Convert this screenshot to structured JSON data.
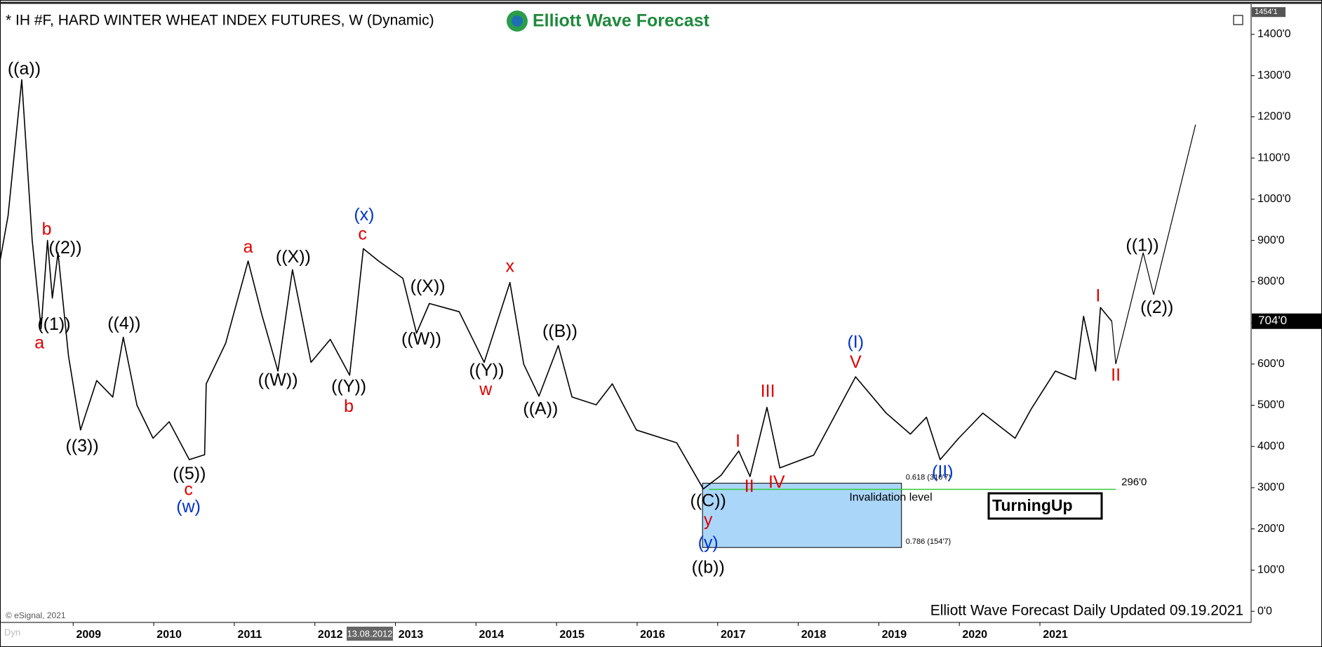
{
  "chart_data": {
    "type": "line",
    "title": "* IH #F, HARD WINTER WHEAT INDEX FUTURES, W (Dynamic)",
    "logo_text": "Elliott Wave Forecast",
    "footer": "Elliott Wave Forecast Daily Updated 09.19.2021",
    "copyright": "© eSignal, 2021",
    "corner_label": "Dyn",
    "cursor_label": "13.08.2012",
    "badge": "TurningUp",
    "color": "#000000",
    "x": [
      2007.9,
      2008.0,
      2008.17,
      2008.3,
      2008.41,
      2008.49,
      2008.55,
      2008.62,
      2008.75,
      2008.9,
      2009.1,
      2009.3,
      2009.43,
      2009.6,
      2009.8,
      2010.0,
      2010.25,
      2010.44,
      2010.46,
      2010.7,
      2010.98,
      2011.15,
      2011.35,
      2011.53,
      2011.76,
      2012.0,
      2012.24,
      2012.41,
      2012.6,
      2012.9,
      2013.07,
      2013.23,
      2013.6,
      2013.91,
      2014.23,
      2014.4,
      2014.59,
      2014.83,
      2015.0,
      2015.3,
      2015.5,
      2015.8,
      2016.3,
      2016.63,
      2016.85,
      2017.07,
      2017.21,
      2017.42,
      2017.58,
      2018.0,
      2018.52,
      2018.9,
      2019.2,
      2019.4,
      2019.57,
      2019.8,
      2020.1,
      2020.5,
      2020.7,
      2021.0,
      2021.25,
      2021.35,
      2021.5,
      2021.56,
      2021.7
    ],
    "values": [
      850,
      960,
      1290,
      900,
      686,
      900,
      760,
      870,
      620,
      440,
      560,
      520,
      665,
      500,
      420,
      460,
      368,
      380,
      552,
      650,
      850,
      720,
      583,
      829,
      604,
      660,
      573,
      880,
      850,
      808,
      675,
      747,
      727,
      604,
      798,
      600,
      522,
      645,
      520,
      501,
      552,
      440,
      409,
      297,
      330,
      389,
      327,
      495,
      348,
      379,
      569,
      481,
      430,
      471,
      368,
      420,
      481,
      420,
      491,
      583,
      563,
      716,
      583,
      737,
      704
    ],
    "projection": {
      "x": [
        2021.7,
        2021.75,
        2022.09,
        2022.22,
        2022.74
      ],
      "values": [
        704,
        600,
        870,
        768,
        1181
      ]
    },
    "xlim": [
      2007.9,
      2023.43
    ],
    "ylim": [
      -27,
      1463
    ],
    "xticks": [
      2009,
      2010,
      2011,
      2012,
      2013,
      2014,
      2015,
      2016,
      2017,
      2018,
      2019,
      2020,
      2021
    ],
    "yticks": [
      {
        "value": 0,
        "label": "0'0"
      },
      {
        "value": 100,
        "label": "100'0"
      },
      {
        "value": 200,
        "label": "200'0"
      },
      {
        "value": 300,
        "label": "300'0"
      },
      {
        "value": 400,
        "label": "400'0"
      },
      {
        "value": 500,
        "label": "500'0"
      },
      {
        "value": 600,
        "label": "600'0"
      },
      {
        "value": 700,
        "label": "700'0"
      },
      {
        "value": 800,
        "label": "800'0"
      },
      {
        "value": 900,
        "label": "900'0"
      },
      {
        "value": 1000,
        "label": "1000'0"
      },
      {
        "value": 1100,
        "label": "1100'0"
      },
      {
        "value": 1200,
        "label": "1200'0"
      },
      {
        "value": 1300,
        "label": "1300'0"
      },
      {
        "value": 1400,
        "label": "1400'0"
      }
    ],
    "last_price": {
      "value": 704,
      "label": "704'0"
    },
    "top_price": {
      "value": 1454.125,
      "label": "1454'1"
    },
    "fib_box": {
      "x": [
        2016.62,
        2019.09
      ],
      "color": "#aad6fa",
      "levels": [
        {
          "value": 310.875,
          "label": "0.618 (310'7)"
        },
        {
          "value": 154.875,
          "label": "0.786 (154'7)"
        }
      ]
    },
    "invalidation": {
      "value": 296,
      "label": "296'0",
      "text": "Invalidation level",
      "x": [
        2016.7,
        2021.75
      ],
      "color": "#33cc33"
    },
    "annotations": [
      {
        "text": "((a))",
        "color": "#000000",
        "x": 2008.2,
        "y": 1314
      },
      {
        "text": "b",
        "color": "#e00000",
        "x": 2008.48,
        "y": 925
      },
      {
        "text": "((2))",
        "color": "#000000",
        "x": 2008.71,
        "y": 880
      },
      {
        "text": "((1))",
        "color": "#000000",
        "x": 2008.57,
        "y": 694
      },
      {
        "text": "a",
        "color": "#e00000",
        "x": 2008.39,
        "y": 649
      },
      {
        "text": "((3))",
        "color": "#000000",
        "x": 2008.92,
        "y": 399
      },
      {
        "text": "((4))",
        "color": "#000000",
        "x": 2009.44,
        "y": 696
      },
      {
        "text": "((5))",
        "color": "#000000",
        "x": 2010.25,
        "y": 332
      },
      {
        "text": "c",
        "color": "#e00000",
        "x": 2010.24,
        "y": 293
      },
      {
        "text": "(w)",
        "color": "#0033cc",
        "x": 2010.24,
        "y": 252
      },
      {
        "text": "a",
        "color": "#e00000",
        "x": 2010.98,
        "y": 882
      },
      {
        "text": "((X))",
        "color": "#000000",
        "x": 2011.54,
        "y": 858
      },
      {
        "text": "((W))",
        "color": "#000000",
        "x": 2011.35,
        "y": 559
      },
      {
        "text": "((Y))",
        "color": "#000000",
        "x": 2012.23,
        "y": 544
      },
      {
        "text": "b",
        "color": "#e00000",
        "x": 2012.23,
        "y": 495
      },
      {
        "text": "(x)",
        "color": "#0033cc",
        "x": 2012.42,
        "y": 960
      },
      {
        "text": "c",
        "color": "#e00000",
        "x": 2012.4,
        "y": 913
      },
      {
        "text": "((X))",
        "color": "#000000",
        "x": 2013.21,
        "y": 786
      },
      {
        "text": "((W))",
        "color": "#000000",
        "x": 2013.13,
        "y": 659
      },
      {
        "text": "x",
        "color": "#e00000",
        "x": 2014.23,
        "y": 835
      },
      {
        "text": "((Y))",
        "color": "#000000",
        "x": 2013.94,
        "y": 583
      },
      {
        "text": "w",
        "color": "#e00000",
        "x": 2013.93,
        "y": 536
      },
      {
        "text": "((B))",
        "color": "#000000",
        "x": 2014.85,
        "y": 677
      },
      {
        "text": "((A))",
        "color": "#000000",
        "x": 2014.61,
        "y": 489
      },
      {
        "text": "I",
        "color": "#e00000",
        "x": 2017.06,
        "y": 411
      },
      {
        "text": "III",
        "color": "#e00000",
        "x": 2017.43,
        "y": 532
      },
      {
        "text": "II",
        "color": "#e00000",
        "x": 2017.2,
        "y": 301
      },
      {
        "text": "IV",
        "color": "#e00000",
        "x": 2017.54,
        "y": 311
      },
      {
        "text": "((C))",
        "color": "#000000",
        "x": 2016.69,
        "y": 266
      },
      {
        "text": "y",
        "color": "#e00000",
        "x": 2016.69,
        "y": 219
      },
      {
        "text": "(y)",
        "color": "#0033cc",
        "x": 2016.69,
        "y": 164
      },
      {
        "text": "((b))",
        "color": "#000000",
        "x": 2016.69,
        "y": 104
      },
      {
        "text": "(I)",
        "color": "#0033cc",
        "x": 2018.52,
        "y": 651
      },
      {
        "text": "V",
        "color": "#e00000",
        "x": 2018.52,
        "y": 602
      },
      {
        "text": "(II)",
        "color": "#0033cc",
        "x": 2019.6,
        "y": 336
      },
      {
        "text": "I",
        "color": "#e00000",
        "x": 2021.53,
        "y": 763
      },
      {
        "text": "II",
        "color": "#e00000",
        "x": 2021.75,
        "y": 571
      },
      {
        "text": "((1))",
        "color": "#000000",
        "x": 2022.08,
        "y": 886
      },
      {
        "text": "((2))",
        "color": "#000000",
        "x": 2022.26,
        "y": 735
      }
    ]
  }
}
